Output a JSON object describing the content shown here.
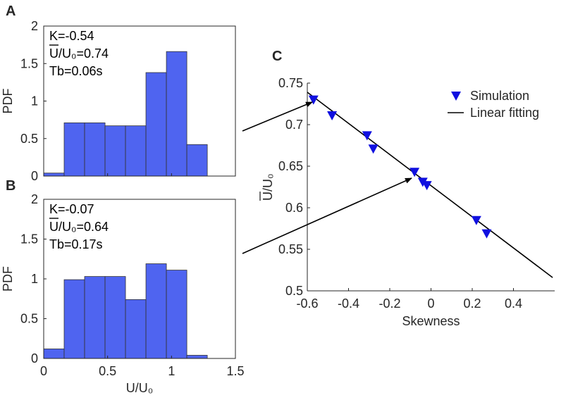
{
  "chart_data": [
    {
      "panel": "A",
      "type": "bar",
      "bin_edges": [
        0,
        0.16,
        0.32,
        0.48,
        0.64,
        0.8,
        0.96,
        1.12,
        1.28
      ],
      "values": [
        0.04,
        0.71,
        0.71,
        0.67,
        0.67,
        1.38,
        1.66,
        0.42
      ],
      "xlim": [
        0,
        1.5
      ],
      "ylim": [
        0,
        2
      ],
      "yticks": [
        "0",
        "0.5",
        "1",
        "1.5",
        "2"
      ],
      "ylabel": "PDF",
      "xlabel": "",
      "annotations": {
        "k": "K=-0.54",
        "u_sym": "U",
        "u_rest": "/U₀=0.74",
        "tb": "Tb=0.06s"
      },
      "bar_color": "#4f64f0"
    },
    {
      "panel": "B",
      "type": "bar",
      "bin_edges": [
        0,
        0.16,
        0.32,
        0.48,
        0.64,
        0.8,
        0.96,
        1.12,
        1.28
      ],
      "values": [
        0.12,
        0.99,
        1.03,
        1.03,
        0.74,
        1.19,
        1.11,
        0.04
      ],
      "xlim": [
        0,
        1.5
      ],
      "ylim": [
        0,
        2
      ],
      "yticks": [
        "0",
        "0.5",
        "1",
        "1.5",
        "2"
      ],
      "xticks": [
        "0",
        "0.5",
        "1",
        "1.5"
      ],
      "ylabel": "PDF",
      "xlabel": "U/U₀",
      "annotations": {
        "k": "K=-0.07",
        "u_sym": "U",
        "u_rest": "/U₀=0.64",
        "tb": "Tb=0.17s"
      },
      "bar_color": "#4f64f0"
    },
    {
      "panel": "C",
      "type": "scatter",
      "series": [
        {
          "name": "Simulation",
          "marker": "triangle-down",
          "color": "#1010e0",
          "x": [
            -0.57,
            -0.48,
            -0.31,
            -0.28,
            -0.08,
            -0.04,
            -0.02,
            0.22,
            0.27
          ],
          "y": [
            0.73,
            0.711,
            0.687,
            0.671,
            0.643,
            0.631,
            0.627,
            0.585,
            0.569
          ]
        },
        {
          "name": "Linear fitting",
          "type": "line",
          "color": "#000000",
          "x": [
            -0.6,
            0.59
          ],
          "y": [
            0.739,
            0.516
          ]
        }
      ],
      "xlim": [
        -0.6,
        0.6
      ],
      "ylim": [
        0.5,
        0.75
      ],
      "xticks": [
        "-0.6",
        "-0.4",
        "-0.2",
        "0",
        "0.2",
        "0.4"
      ],
      "yticks": [
        "0.5",
        "0.55",
        "0.6",
        "0.65",
        "0.7",
        "0.75"
      ],
      "xlabel": "Skewness",
      "ylabel_sym": "U",
      "ylabel_rest": "/U₀",
      "legend": [
        "Simulation",
        "Linear fitting"
      ],
      "legend_position": "top-right"
    }
  ]
}
